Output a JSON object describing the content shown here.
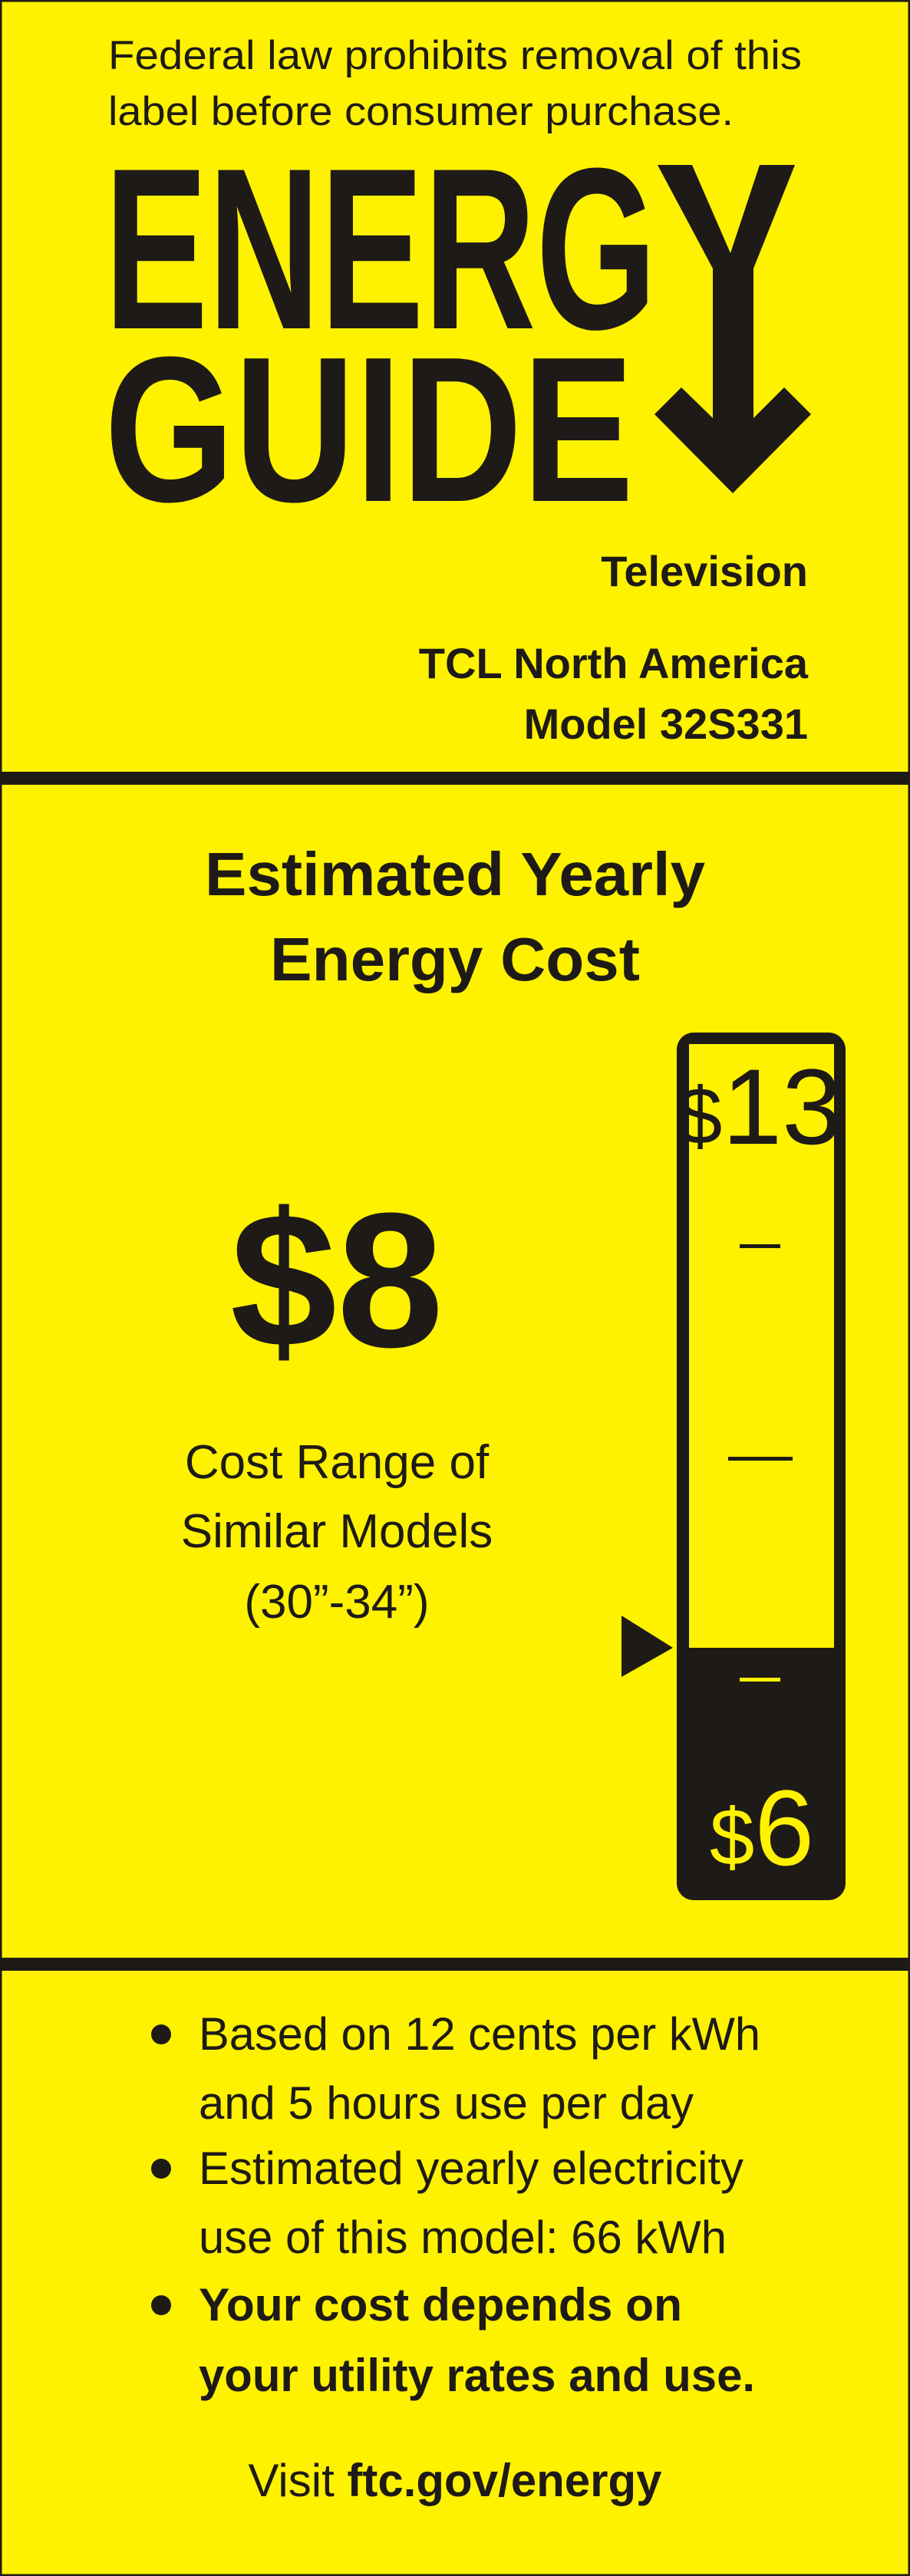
{
  "header": {
    "notice_line1": "Federal law prohibits removal of this",
    "notice_line2": "label before consumer purchase."
  },
  "logo": {
    "line1": "ENERGY",
    "line2": "GUIDE",
    "icon": "down-arrow-icon"
  },
  "product": {
    "category": "Television",
    "manufacturer": "TCL North America",
    "model": "Model 32S331"
  },
  "cost": {
    "heading_line1": "Estimated Yearly",
    "heading_line2": "Energy Cost",
    "value": "$8",
    "range_line1": "Cost Range of",
    "range_line2": "Similar Models",
    "range_line3": "(30”-34”)"
  },
  "scale": {
    "max_currency": "$",
    "max_value": "13",
    "min_currency": "$",
    "min_value": "6",
    "min": 6,
    "max": 13,
    "marker_value": 8
  },
  "notes": {
    "bullet1_line1": "Based on 12 cents per kWh",
    "bullet1_line2": "and 5 hours use per day",
    "bullet2_line1": "Estimated yearly electricity",
    "bullet2_line2": "use of this model: 66 kWh",
    "bullet3_line1": "Your cost depends on",
    "bullet3_line2": "your utility rates and use."
  },
  "footer": {
    "visit_label": "Visit",
    "link": "ftc.gov/energy"
  },
  "colors": {
    "background": "#fff200",
    "ink": "#1e1a17"
  }
}
